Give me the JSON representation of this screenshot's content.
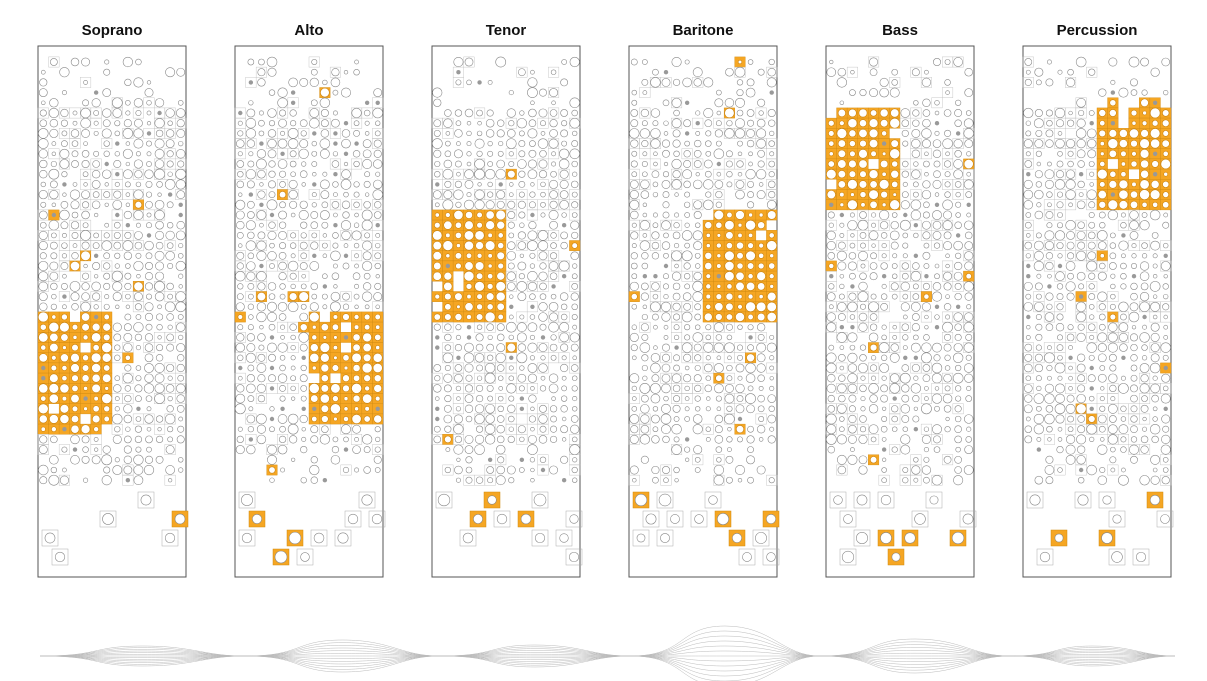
{
  "panels": [
    {
      "title": "Soprano"
    },
    {
      "title": "Alto"
    },
    {
      "title": "Tenor"
    },
    {
      "title": "Baritone"
    },
    {
      "title": "Bass"
    },
    {
      "title": "Percussion"
    }
  ]
}
